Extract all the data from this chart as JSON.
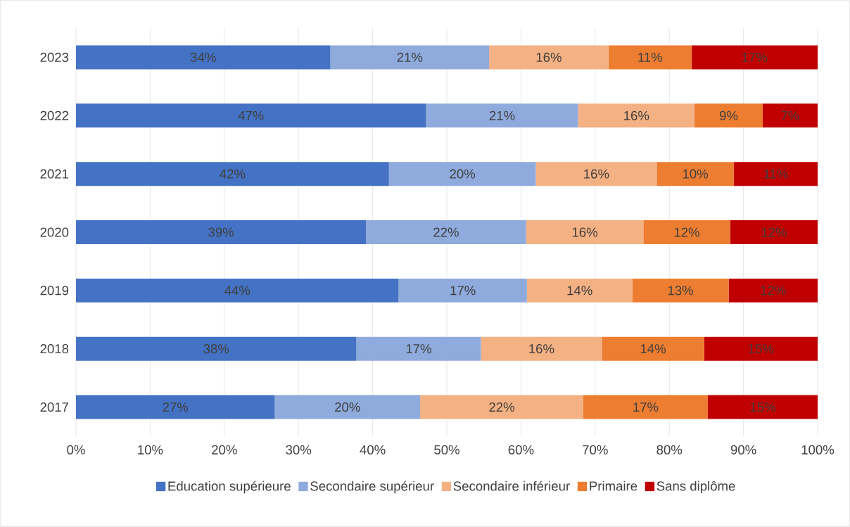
{
  "chart_data": {
    "type": "bar",
    "orientation": "horizontal",
    "stacked": true,
    "categories": [
      "2023",
      "2022",
      "2021",
      "2020",
      "2019",
      "2018",
      "2017"
    ],
    "series": [
      {
        "name": "Education supérieure",
        "color": "#4472c4",
        "values": [
          34.3,
          47.2,
          42.2,
          39.1,
          43.5,
          37.8,
          26.8
        ],
        "value_labels": [
          "34%",
          "47%",
          "42%",
          "39%",
          "44%",
          "38%",
          "27%"
        ]
      },
      {
        "name": "Secondaire supérieur",
        "color": "#8faadc",
        "values": [
          21.4,
          20.5,
          19.8,
          21.6,
          17.3,
          16.8,
          19.6
        ],
        "value_labels": [
          "21%",
          "21%",
          "20%",
          "22%",
          "17%",
          "17%",
          "20%"
        ]
      },
      {
        "name": "Secondaire inférieur",
        "color": "#f4b183",
        "values": [
          16.1,
          15.7,
          16.3,
          15.8,
          14.2,
          16.3,
          22.0
        ],
        "value_labels": [
          "16%",
          "16%",
          "16%",
          "16%",
          "14%",
          "16%",
          "22%"
        ]
      },
      {
        "name": "Primaire",
        "color": "#ed7d31",
        "values": [
          11.2,
          9.2,
          10.4,
          11.7,
          13.0,
          13.8,
          16.8
        ],
        "value_labels": [
          "11%",
          "9%",
          "10%",
          "12%",
          "13%",
          "14%",
          "17%"
        ]
      },
      {
        "name": "Sans diplôme",
        "color": "#c00000",
        "values": [
          17.0,
          7.4,
          11.3,
          11.8,
          12.0,
          15.3,
          14.8
        ],
        "value_labels": [
          "17%",
          "7%",
          "11%",
          "12%",
          "12%",
          "15%",
          "15%"
        ]
      }
    ],
    "xlim": [
      0,
      100
    ],
    "xticks": [
      {
        "value": 0,
        "label": "0%"
      },
      {
        "value": 10,
        "label": "10%"
      },
      {
        "value": 20,
        "label": "20%"
      },
      {
        "value": 30,
        "label": "30%"
      },
      {
        "value": 40,
        "label": "40%"
      },
      {
        "value": 50,
        "label": "50%"
      },
      {
        "value": 60,
        "label": "60%"
      },
      {
        "value": 70,
        "label": "70%"
      },
      {
        "value": 80,
        "label": "80%"
      },
      {
        "value": 90,
        "label": "90%"
      },
      {
        "value": 100,
        "label": "100%"
      }
    ],
    "grid": "x",
    "legend": "bottom"
  }
}
